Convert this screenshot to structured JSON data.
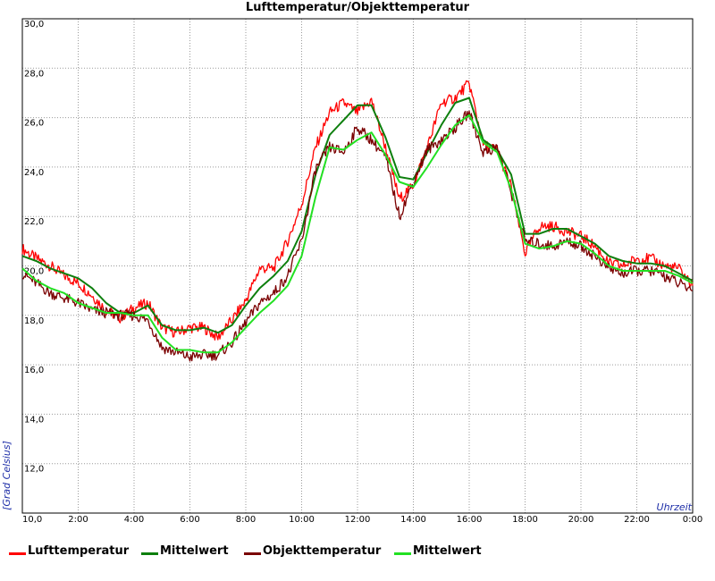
{
  "chart_data": {
    "type": "line",
    "title": "Lufttemperatur/Objekttemperatur",
    "xlabel": "Uhrzeit",
    "ylabel": "[Grad Celsius]",
    "xlim": [
      0,
      24
    ],
    "ylim": [
      10,
      30
    ],
    "grid": true,
    "x_ticks": [
      "10,0",
      "2:00",
      "4:00",
      "6:00",
      "8:00",
      "10:00",
      "12:00",
      "14:00",
      "16:00",
      "18:00",
      "20:00",
      "22:00",
      "0:00"
    ],
    "y_ticks": [
      "10,0",
      "12,0",
      "14,0",
      "16,0",
      "18,0",
      "20,0",
      "22,0",
      "24,0",
      "26,0",
      "28,0",
      "30,0"
    ],
    "x": [
      0,
      0.5,
      1,
      1.5,
      2,
      2.5,
      3,
      3.5,
      4,
      4.5,
      5,
      5.5,
      6,
      6.5,
      7,
      7.5,
      8,
      8.5,
      9,
      9.5,
      10,
      10.5,
      11,
      11.5,
      12,
      12.5,
      13,
      13.5,
      14,
      14.5,
      15,
      15.5,
      16,
      16.5,
      17,
      17.5,
      18,
      18.5,
      19,
      19.5,
      20,
      20.5,
      21,
      21.5,
      22,
      22.5,
      23,
      23.5,
      24
    ],
    "series": [
      {
        "name": "Lufttemperatur",
        "color": "#ff0000",
        "values": [
          20.7,
          20.3,
          20.0,
          19.6,
          19.3,
          18.8,
          18.2,
          17.9,
          18.3,
          18.5,
          17.5,
          17.3,
          17.5,
          17.5,
          17.1,
          17.8,
          18.6,
          19.9,
          19.9,
          21.0,
          22.5,
          24.8,
          26.2,
          26.6,
          26.2,
          26.7,
          24.8,
          22.7,
          23.3,
          24.8,
          26.6,
          26.8,
          27.4,
          24.9,
          24.7,
          23.2,
          20.5,
          21.6,
          21.6,
          21.4,
          21.2,
          20.8,
          20.1,
          20.0,
          20.3,
          20.3,
          20.0,
          19.9,
          19.2
        ]
      },
      {
        "name": "Mittelwert",
        "color": "#0d7f0d",
        "values": [
          20.4,
          20.2,
          19.9,
          19.7,
          19.5,
          19.1,
          18.5,
          18.1,
          18.1,
          18.4,
          17.6,
          17.4,
          17.4,
          17.5,
          17.3,
          17.6,
          18.4,
          19.1,
          19.6,
          20.2,
          21.4,
          23.7,
          25.3,
          25.9,
          26.5,
          26.5,
          25.2,
          23.6,
          23.5,
          24.6,
          25.7,
          26.6,
          26.8,
          25.1,
          24.7,
          23.7,
          21.3,
          21.3,
          21.5,
          21.5,
          21.2,
          20.9,
          20.4,
          20.2,
          20.1,
          20.1,
          20.0,
          19.7,
          19.4
        ]
      },
      {
        "name": "Objekttemperatur",
        "color": "#7a0000",
        "values": [
          19.7,
          19.3,
          18.9,
          18.7,
          18.5,
          18.2,
          18.1,
          18.0,
          18.0,
          17.8,
          16.7,
          16.5,
          16.3,
          16.4,
          16.4,
          16.9,
          17.7,
          18.5,
          18.9,
          19.6,
          21.0,
          23.9,
          24.8,
          24.6,
          25.6,
          25.1,
          24.4,
          22.0,
          23.4,
          24.7,
          25.1,
          25.6,
          26.2,
          24.6,
          24.8,
          23.0,
          21.0,
          20.9,
          20.8,
          21.0,
          20.8,
          20.4,
          19.9,
          19.7,
          19.8,
          19.8,
          19.6,
          19.3,
          19.0
        ]
      },
      {
        "name": "Mittelwert",
        "color": "#22e022",
        "values": [
          19.9,
          19.4,
          19.1,
          18.9,
          18.5,
          18.3,
          18.1,
          18.1,
          18.0,
          18.0,
          17.1,
          16.6,
          16.6,
          16.5,
          16.5,
          16.9,
          17.5,
          18.1,
          18.6,
          19.2,
          20.4,
          22.8,
          24.8,
          24.7,
          25.1,
          25.4,
          24.5,
          23.4,
          23.2,
          24.0,
          24.9,
          25.7,
          26.1,
          25.0,
          24.6,
          23.1,
          20.9,
          20.7,
          20.8,
          21.0,
          20.9,
          20.5,
          20.0,
          19.8,
          19.8,
          19.8,
          19.8,
          19.6,
          19.3
        ]
      }
    ]
  }
}
